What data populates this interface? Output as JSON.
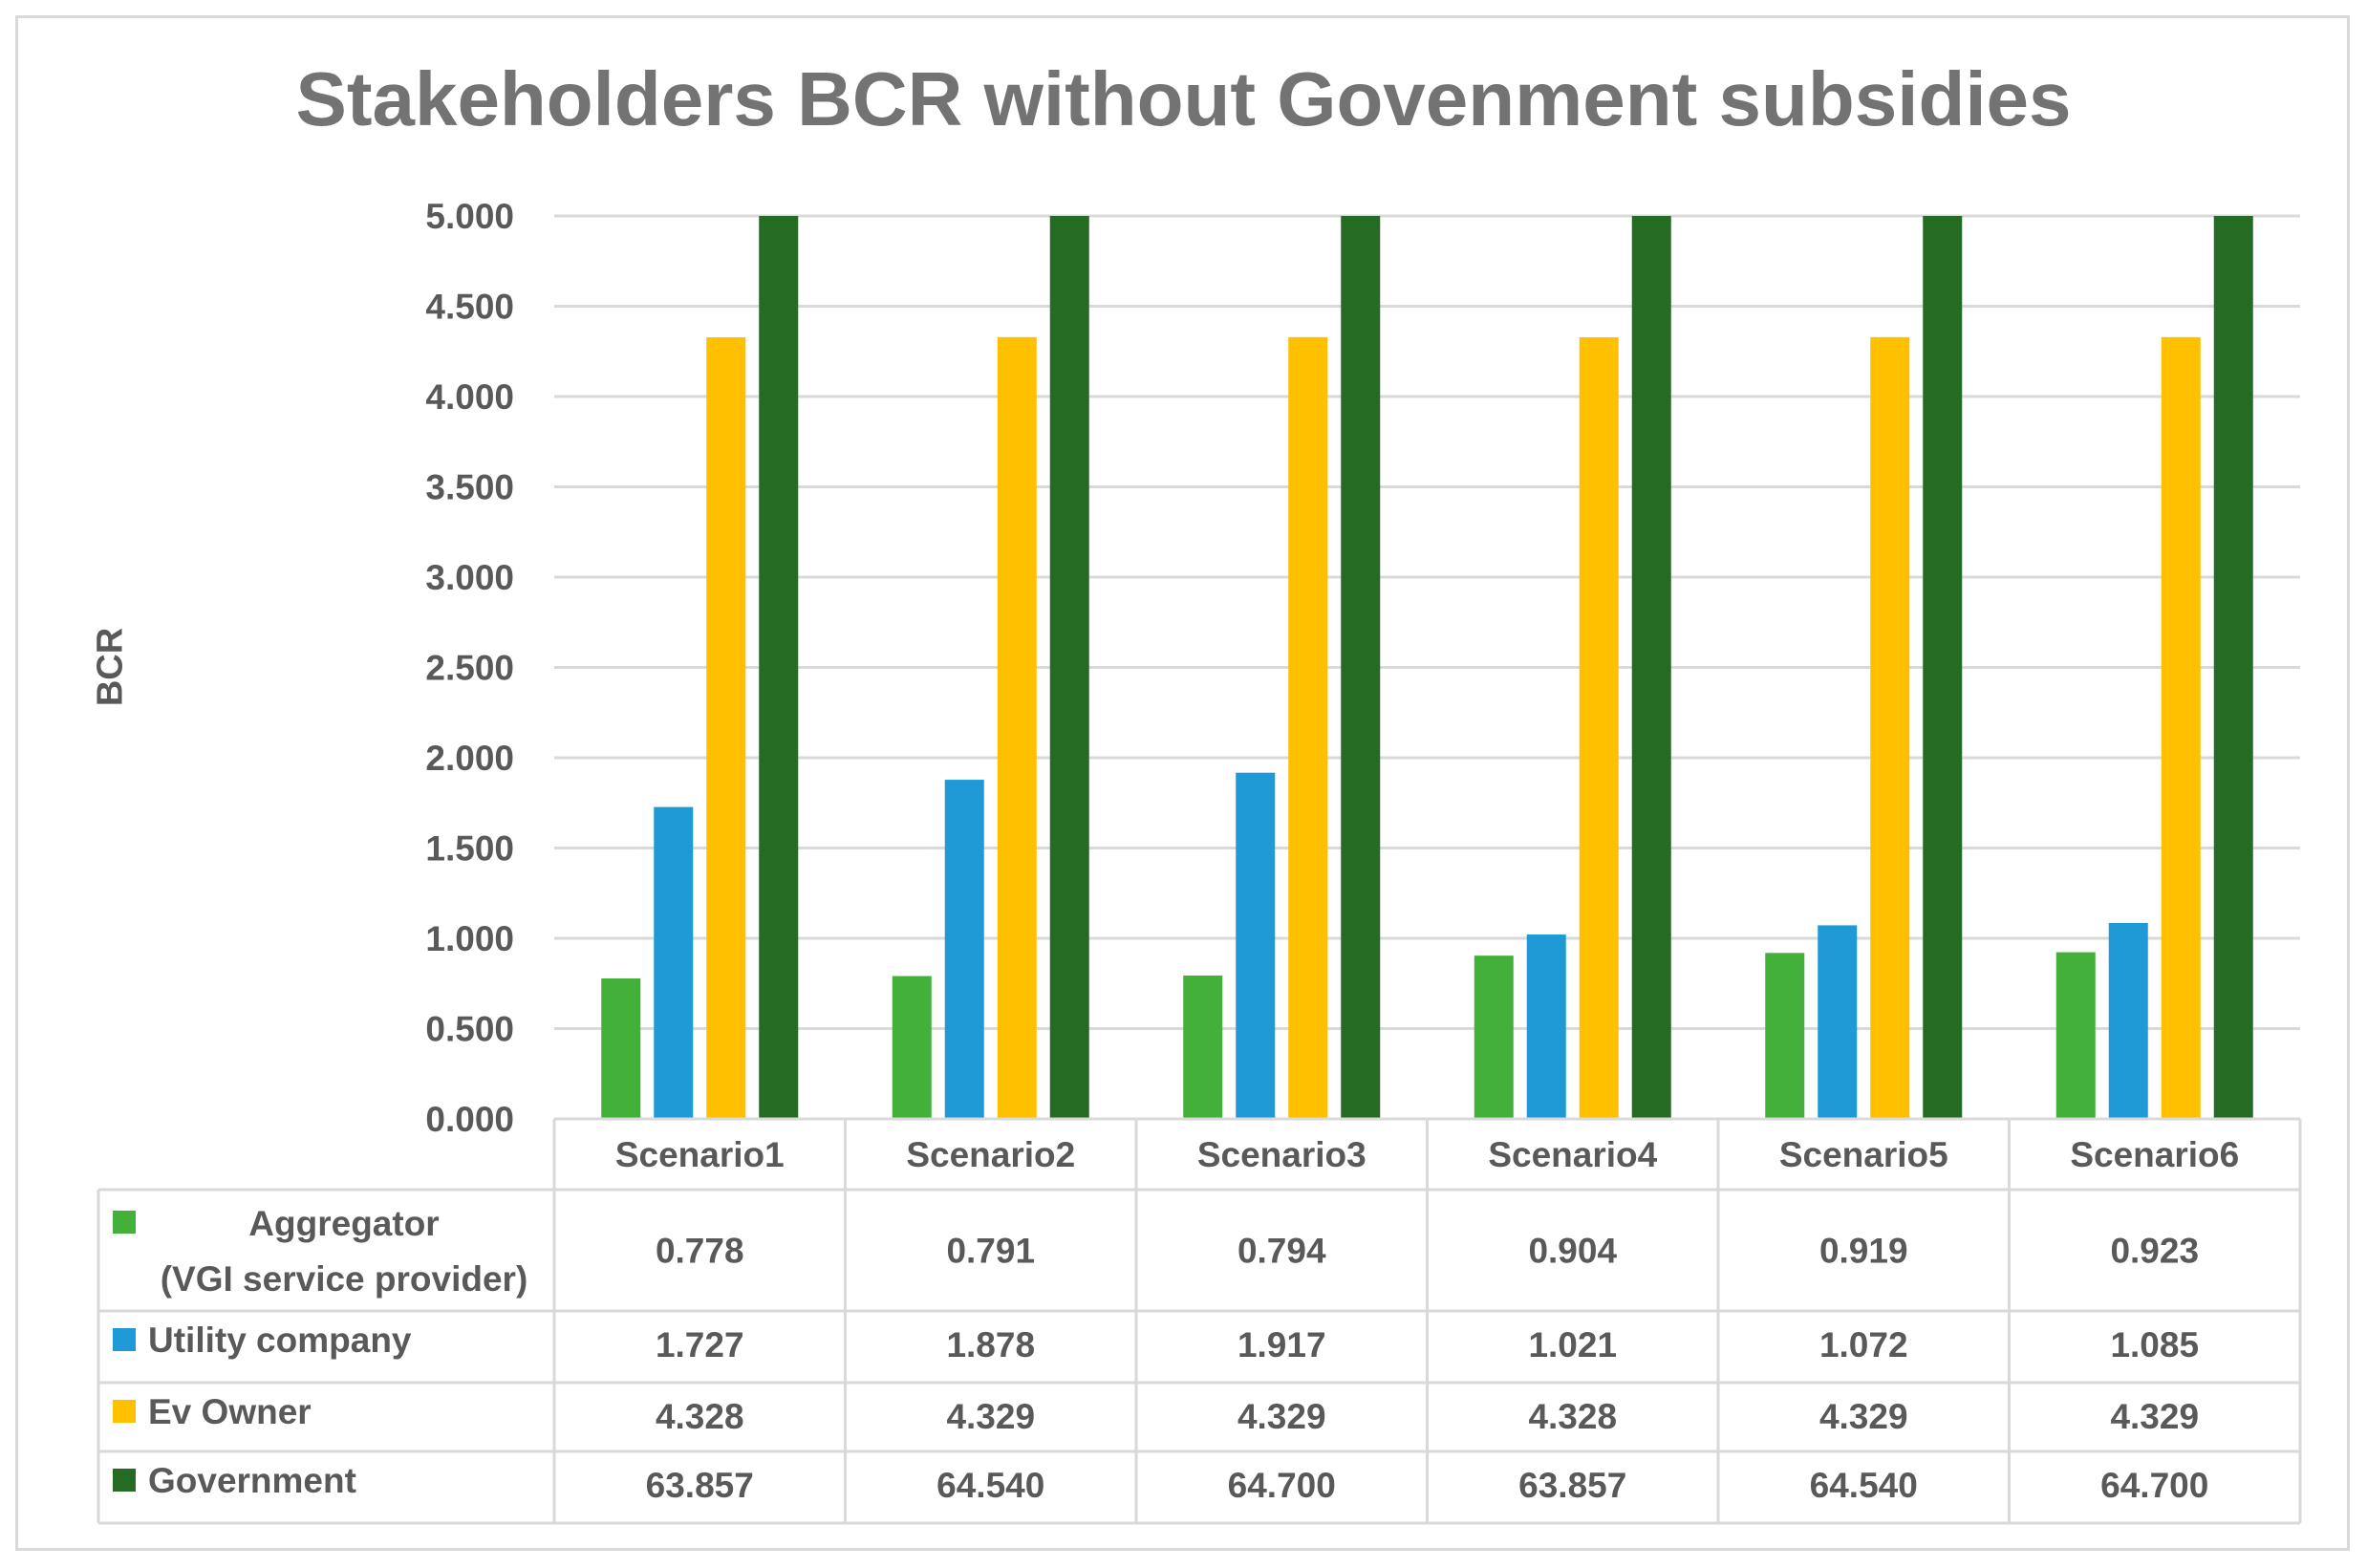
{
  "chart_data": {
    "type": "bar",
    "title": "Stakeholders BCR without Govenment subsidies",
    "ylabel": "BCR",
    "xlabel": "",
    "ylim": [
      0,
      5
    ],
    "yticks": [
      "0.000",
      "0.500",
      "1.000",
      "1.500",
      "2.000",
      "2.500",
      "3.000",
      "3.500",
      "4.000",
      "4.500",
      "5.000"
    ],
    "grid": true,
    "categories": [
      "Scenario1",
      "Scenario2",
      "Scenario3",
      "Scenario4",
      "Scenario5",
      "Scenario6"
    ],
    "series": [
      {
        "name": "Aggregator (VGI service provider)",
        "name_lines": [
          "Aggregator",
          "(VGI service provider)"
        ],
        "color": "#43b03a",
        "values": [
          0.778,
          0.791,
          0.794,
          0.904,
          0.919,
          0.923
        ],
        "labels": [
          "0.778",
          "0.791",
          "0.794",
          "0.904",
          "0.919",
          "0.923"
        ]
      },
      {
        "name": "Utility company",
        "name_lines": [
          "Utility company"
        ],
        "color": "#1f9ad6",
        "values": [
          1.727,
          1.878,
          1.917,
          1.021,
          1.072,
          1.085
        ],
        "labels": [
          "1.727",
          "1.878",
          "1.917",
          "1.021",
          "1.072",
          "1.085"
        ]
      },
      {
        "name": "Ev Owner",
        "name_lines": [
          "Ev Owner"
        ],
        "color": "#ffc000",
        "values": [
          4.328,
          4.329,
          4.329,
          4.328,
          4.329,
          4.329
        ],
        "labels": [
          "4.328",
          "4.329",
          "4.329",
          "4.328",
          "4.329",
          "4.329"
        ]
      },
      {
        "name": "Government",
        "name_lines": [
          "Government"
        ],
        "color": "#256b23",
        "values": [
          63.857,
          64.54,
          64.7,
          63.857,
          64.54,
          64.7
        ],
        "labels": [
          "63.857",
          "64.540",
          "64.700",
          "63.857",
          "64.540",
          "64.700"
        ]
      }
    ]
  }
}
